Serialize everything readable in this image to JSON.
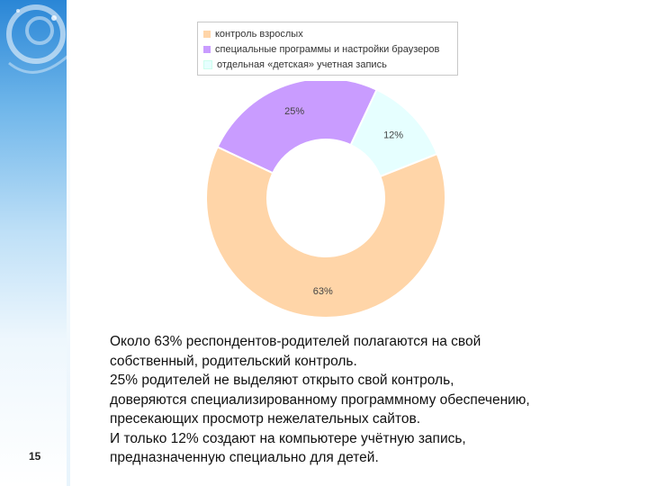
{
  "slide": {
    "page_number": "15",
    "text_lines": [
      "Около 63% респондентов-родителей полагаются на свой",
      "собственный, родительский контроль.",
      "25% родителей не выделяют открыто свой контроль,",
      "доверяются специализированному программному обеспечению,",
      "пресекающих просмотр нежелательных сайтов.",
      "И только 12% создают на компьютере учётную запись,",
      "предназначенную специально для детей."
    ]
  },
  "chart_data": {
    "type": "pie",
    "variant": "donut",
    "series": [
      {
        "name": "контроль взрослых",
        "value": 63,
        "label": "63%",
        "color": "#ffd5a8"
      },
      {
        "name": "специальные программы и настройки браузеров",
        "value": 25,
        "label": "25%",
        "color": "#c99cff"
      },
      {
        "name": "отдельная «детская» учетная запись",
        "value": 12,
        "label": "12%",
        "color": "#e6ffff"
      }
    ],
    "legend_position": "top"
  }
}
